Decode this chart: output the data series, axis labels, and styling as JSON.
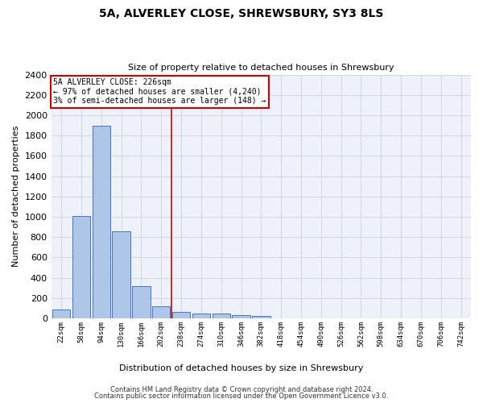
{
  "title": "5A, ALVERLEY CLOSE, SHREWSBURY, SY3 8LS",
  "subtitle": "Size of property relative to detached houses in Shrewsbury",
  "xlabel": "Distribution of detached houses by size in Shrewsbury",
  "ylabel": "Number of detached properties",
  "bar_labels": [
    "22sqm",
    "58sqm",
    "94sqm",
    "130sqm",
    "166sqm",
    "202sqm",
    "238sqm",
    "274sqm",
    "310sqm",
    "346sqm",
    "382sqm",
    "418sqm",
    "454sqm",
    "490sqm",
    "526sqm",
    "562sqm",
    "598sqm",
    "634sqm",
    "670sqm",
    "706sqm",
    "742sqm"
  ],
  "bar_values": [
    90,
    1010,
    1895,
    860,
    315,
    120,
    60,
    50,
    45,
    28,
    20,
    0,
    0,
    0,
    0,
    0,
    0,
    0,
    0,
    0,
    0
  ],
  "bar_color": "#aec6e8",
  "bar_edge_color": "#4472c4",
  "property_line_x": 5.5,
  "annotation_text": "5A ALVERLEY CLOSE: 226sqm\n← 97% of detached houses are smaller (4,240)\n3% of semi-detached houses are larger (148) →",
  "annotation_box_color": "#ffffff",
  "annotation_box_edge": "#cc0000",
  "vline_color": "#cc0000",
  "ylim": [
    0,
    2400
  ],
  "yticks": [
    0,
    200,
    400,
    600,
    800,
    1000,
    1200,
    1400,
    1600,
    1800,
    2000,
    2200,
    2400
  ],
  "grid_color": "#d0d8e8",
  "bg_color": "#eef2f8",
  "footer1": "Contains HM Land Registry data © Crown copyright and database right 2024.",
  "footer2": "Contains public sector information licensed under the Open Government Licence v3.0."
}
